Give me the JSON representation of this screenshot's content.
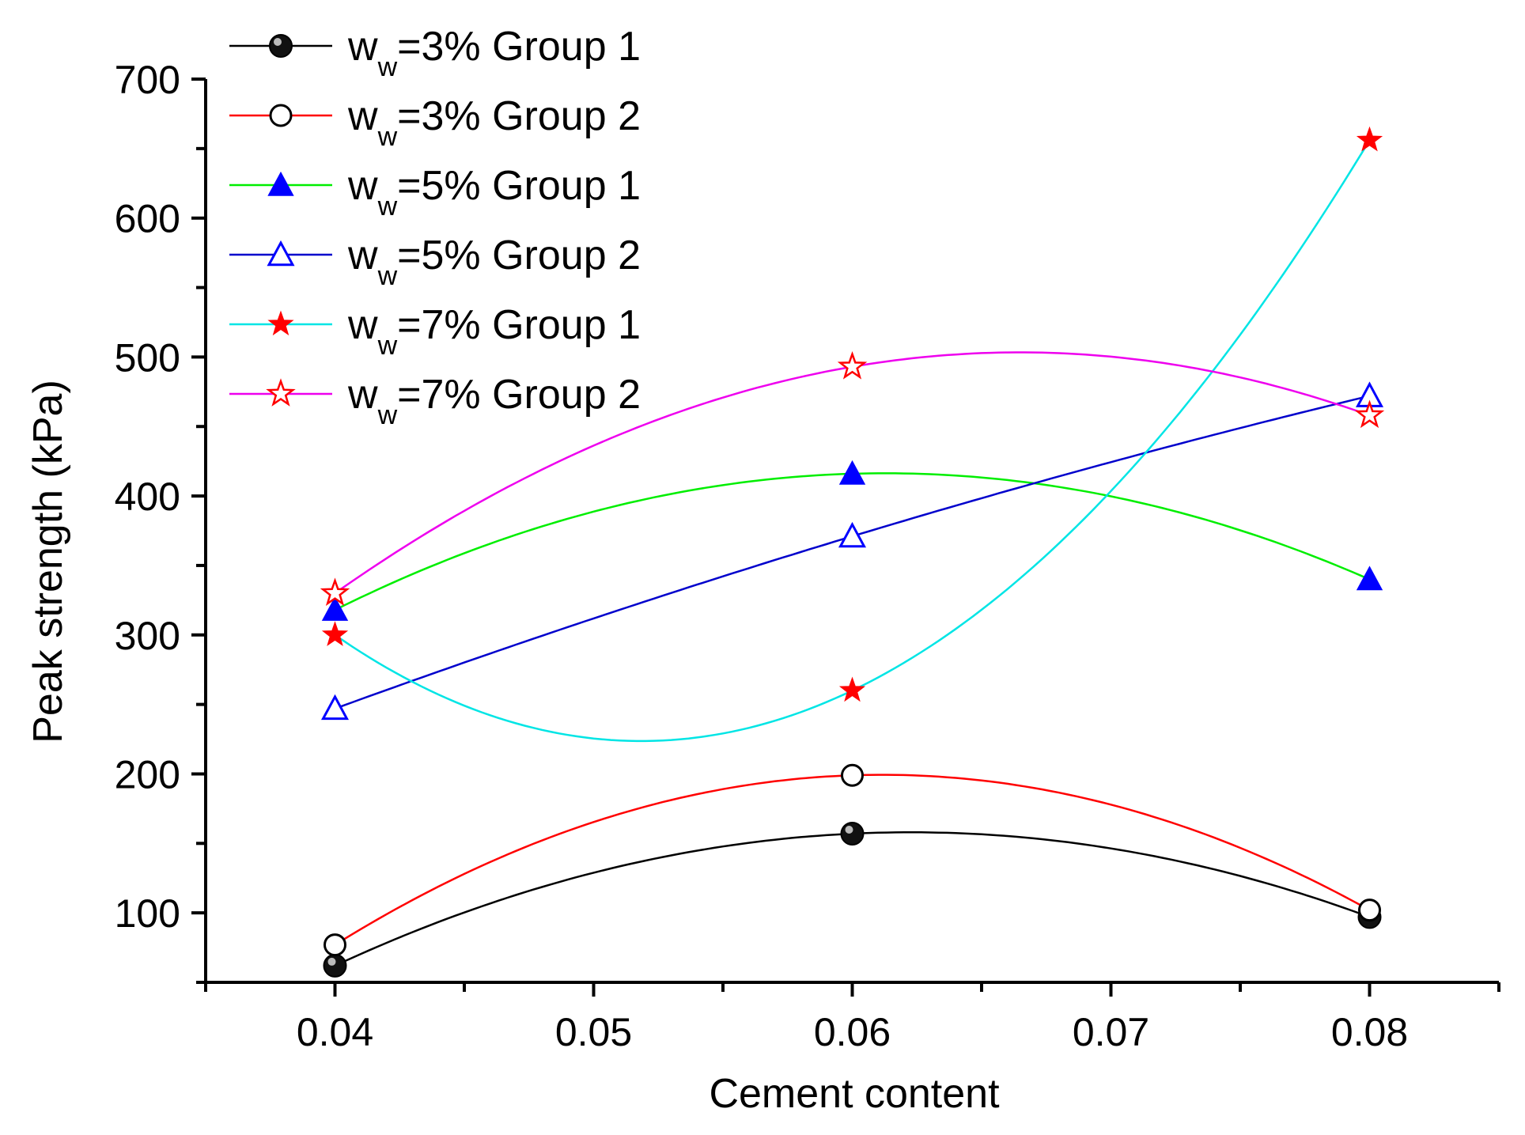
{
  "chart_data": {
    "type": "line",
    "title": "",
    "xlabel": "Cement content",
    "ylabel": "Peak strength (kPa)",
    "x": [
      0.04,
      0.06,
      0.08
    ],
    "xlim": [
      0.035,
      0.085
    ],
    "ylim": [
      50,
      700
    ],
    "x_ticks": [
      0.04,
      0.05,
      0.06,
      0.07,
      0.08
    ],
    "x_tick_labels": [
      "0.04",
      "0.05",
      "0.06",
      "0.07",
      "0.08"
    ],
    "y_ticks": [
      100,
      200,
      300,
      400,
      500,
      600,
      700
    ],
    "y_tick_labels": [
      "100",
      "200",
      "300",
      "400",
      "500",
      "600",
      "700"
    ],
    "grid": false,
    "legend_position": "top-left",
    "series": [
      {
        "name": "w_w=3% Group 1",
        "label_main": "w",
        "label_sub": "w",
        "label_rest": "=3% Group 1",
        "values": [
          62,
          157,
          97
        ],
        "line_color": "#000000",
        "marker": "sphere",
        "marker_color": "#000000"
      },
      {
        "name": "w_w=3% Group 2",
        "label_main": "w",
        "label_sub": "w",
        "label_rest": "=3% Group 2",
        "values": [
          77,
          199,
          102
        ],
        "line_color": "#ff0000",
        "marker": "open-circle",
        "marker_color": "#000000"
      },
      {
        "name": "w_w=5% Group 1",
        "label_main": "w",
        "label_sub": "w",
        "label_rest": "=5% Group 1",
        "values": [
          318,
          416,
          340
        ],
        "line_color": "#00ee00",
        "marker": "filled-triangle",
        "marker_color": "#0000ff"
      },
      {
        "name": "w_w=5% Group 2",
        "label_main": "w",
        "label_sub": "w",
        "label_rest": "=5% Group 2",
        "values": [
          247,
          371,
          472
        ],
        "line_color": "#0000cc",
        "marker": "open-triangle",
        "marker_color": "#0000ff"
      },
      {
        "name": "w_w=7% Group 1",
        "label_main": "w",
        "label_sub": "w",
        "label_rest": "=7% Group 1",
        "values": [
          300,
          260,
          656
        ],
        "line_color": "#00e5e5",
        "marker": "filled-star",
        "marker_color": "#ff0000"
      },
      {
        "name": "w_w=7% Group 2",
        "label_main": "w",
        "label_sub": "w",
        "label_rest": "=7% Group 2",
        "values": [
          330,
          493,
          458
        ],
        "line_color": "#ee00ee",
        "marker": "open-star",
        "marker_color": "#ff0000"
      }
    ]
  }
}
